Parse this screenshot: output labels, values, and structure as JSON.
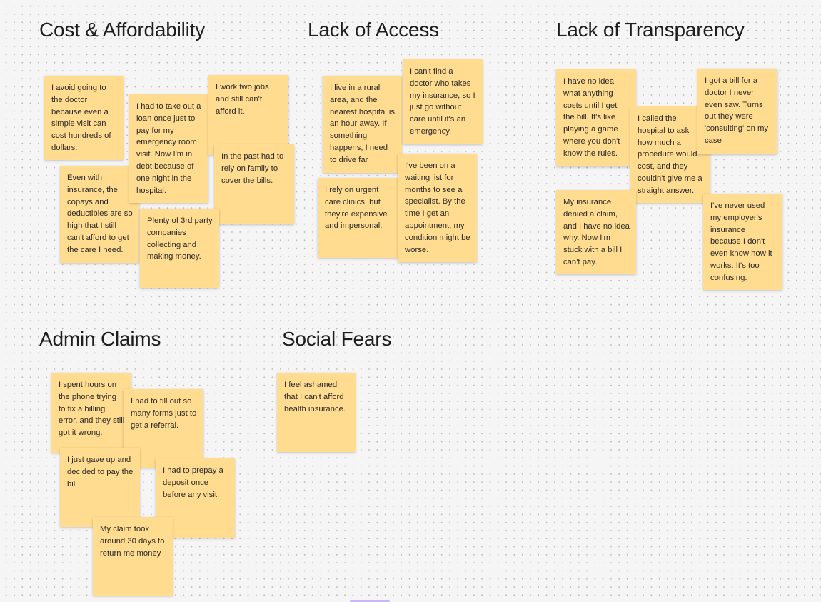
{
  "board": {
    "sticky_color": "#ffdc8f",
    "sections": [
      {
        "title": "Cost & Affordability",
        "notes": [
          "I avoid going to the doctor because even a simple visit can cost hundreds of dollars.",
          "Even with insurance, the copays and deductibles are so high that I still can't afford to get the care I need.",
          "I had to take out a loan once just to pay for my emergency room visit. Now I'm in debt because of one night in the hospital.",
          "I work two jobs and still can't afford it.",
          "In the past had to rely on family to cover the bills.",
          "Plenty of 3rd party companies collecting and making money."
        ]
      },
      {
        "title": "Lack of Access",
        "notes": [
          "I live in a rural area, and the nearest hospital is an hour away. If something happens, I need to drive far",
          "I can't find a doctor who takes my insurance, so I just go without care until it's an emergency.",
          " I rely on urgent care clinics, but they're expensive and impersonal.",
          "I've been on a waiting list for months to see a specialist. By the time I get an appointment, my condition might be worse."
        ]
      },
      {
        "title": "Lack of Transparency",
        "notes": [
          "I have no idea what anything costs until I get the bill. It's like playing a game where you don't know the rules.",
          "I called the hospital to ask how much a procedure would cost, and they couldn't give me a straight answer.",
          "I got a bill for a doctor I never even saw. Turns out they were 'consulting' on my case",
          "My insurance denied a claim, and I have no idea why. Now I'm stuck with a bill I can't pay.",
          "I've never used my employer's insurance because I don't even know how it works. It's too confusing."
        ]
      },
      {
        "title": "Admin Claims",
        "notes": [
          "I spent hours on the phone trying to fix a billing error, and they still got it wrong.",
          "I had to fill out so many forms just to get a referral.",
          "I just gave up and decided to pay the bill",
          "I had to prepay a deposit once before any visit.",
          "My claim took around 30 days to return me money"
        ]
      },
      {
        "title": "Social Fears",
        "notes": [
          "I feel ashamed that I can't afford health insurance."
        ]
      }
    ]
  }
}
